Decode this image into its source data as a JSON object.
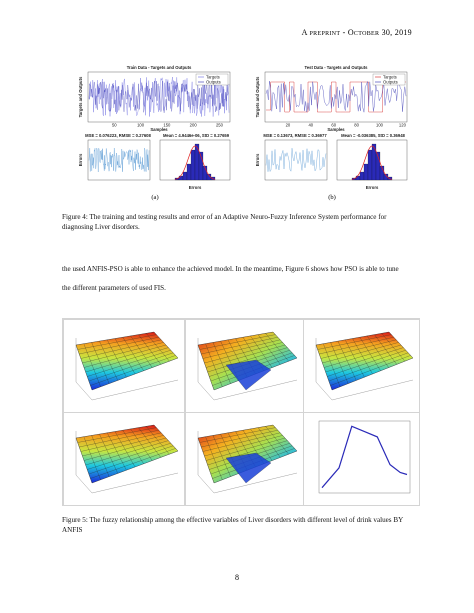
{
  "header": {
    "running_title": "A preprint - October 30, 2019"
  },
  "figure4": {
    "panels": [
      {
        "label": "(a)",
        "top_title": "Train Data - Targets and Outputs",
        "y_label": "Targets and Outputs",
        "x_label": "Samples",
        "legend": [
          "Targets",
          "Outputs"
        ],
        "xticks": [
          "50",
          "100",
          "150",
          "200",
          "250"
        ],
        "error_title": "MSE = 0.076223, RMSE = 0.27608",
        "hist_title": "Mean = 4.9446e-06, StD = 0.27659",
        "error_y_label": "Errors",
        "hist_x_label": "Errors"
      },
      {
        "label": "(b)",
        "top_title": "Test Data - Targets and Outputs",
        "y_label": "Targets and Outputs",
        "x_label": "Samples",
        "legend": [
          "Targets",
          "Outputs"
        ],
        "xticks": [
          "20",
          "40",
          "60",
          "80",
          "100",
          "120"
        ],
        "error_title": "MSE = 0.13673, RMSE = 0.36977",
        "hist_title": "Mean = -0.036385, StD = 0.36948",
        "error_y_label": "Errors",
        "hist_x_label": "Errors"
      }
    ],
    "caption_lines": [
      "Figure 4: The training and testing results and error of an Adaptive Neuro-Fuzzy Inference System performance for",
      "diagnosing Liver disorders."
    ]
  },
  "body": {
    "paragraph_lines": [
      "the used ANFIS-PSO is able to enhance the achieved model. In the meantime, Figure 6 shows how PSO is able to tune",
      "the different parameters of used FIS."
    ]
  },
  "figure5": {
    "caption_lines": [
      "Figure 5: The fuzzy relationship among the effective variables of Liver disorders with different level of drink values BY",
      "ANFIS"
    ]
  },
  "footer": {
    "page_number": "8"
  }
}
